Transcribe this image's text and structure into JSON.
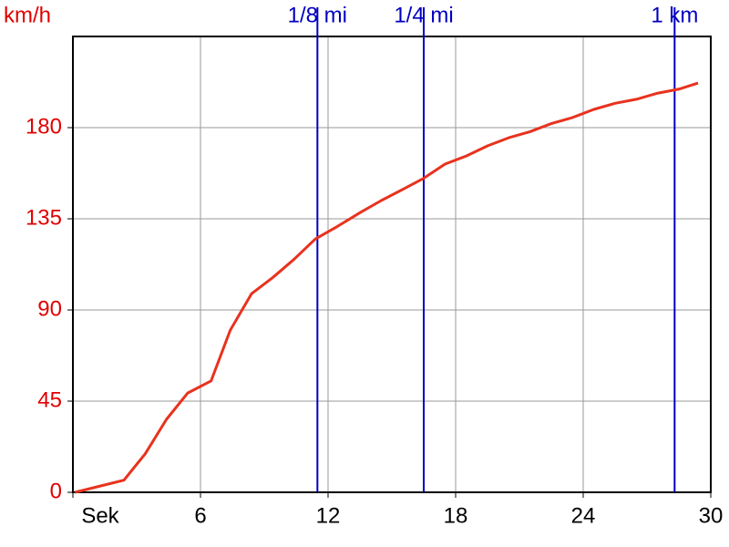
{
  "chart_data": {
    "type": "line",
    "y_label": "km/h",
    "x": [
      0.1,
      2.4,
      3.4,
      4.4,
      5.4,
      6.5,
      7.4,
      8.4,
      9.4,
      10.4,
      11.4,
      12.4,
      13.5,
      14.5,
      15.6,
      16.5,
      17.5,
      18.5,
      19.5,
      20.5,
      21.5,
      22.5,
      23.5,
      24.5,
      25.5,
      26.5,
      27.5,
      28.5,
      29.4
    ],
    "series": [
      {
        "color": "#e8321e",
        "values": [
          0,
          6,
          19,
          36,
          49,
          55,
          80,
          98,
          106,
          115,
          125,
          131,
          138,
          144,
          150,
          155,
          162,
          166,
          171,
          175,
          178,
          182,
          185,
          189,
          192,
          194,
          197,
          199,
          202
        ]
      }
    ],
    "xlim": [
      0,
      30
    ],
    "xticks": [
      {
        "value": 0,
        "label": "Sek"
      },
      6,
      12,
      18,
      24,
      30
    ],
    "ylim": [
      0,
      225
    ],
    "yticks": [
      0,
      45,
      90,
      135,
      180
    ],
    "grid": true,
    "y_color": "#e00000",
    "markers": [
      {
        "label": "1/8 mi",
        "x": 11.5
      },
      {
        "label": "1/4 mi",
        "x": 16.5
      },
      {
        "label": "1 km",
        "x": 28.3
      }
    ],
    "marker_color": "#0000c0"
  }
}
